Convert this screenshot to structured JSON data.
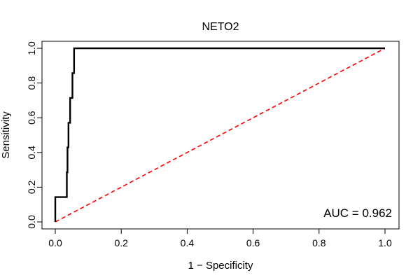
{
  "chart_data": {
    "type": "line",
    "title": "NETO2",
    "xlabel": "1 − Specificity",
    "ylabel": "Sensitivity",
    "xlim": [
      0,
      1
    ],
    "ylim": [
      0,
      1
    ],
    "x_ticks": [
      "0.0",
      "0.2",
      "0.4",
      "0.6",
      "0.8",
      "1.0"
    ],
    "y_ticks": [
      "0.0",
      "0.2",
      "0.4",
      "0.6",
      "0.8",
      "1.0"
    ],
    "grid": false,
    "legend": "none",
    "series": [
      {
        "color": "#000000",
        "style": "solid",
        "x": [
          0,
          0,
          0.035,
          0.035,
          0.037,
          0.037,
          0.04,
          0.04,
          0.045,
          0.045,
          0.052,
          0.052,
          0.057,
          0.057,
          1.0
        ],
        "y": [
          0,
          0.143,
          0.143,
          0.286,
          0.286,
          0.429,
          0.429,
          0.571,
          0.571,
          0.714,
          0.714,
          0.857,
          0.857,
          1.0,
          1.0
        ]
      },
      {
        "color": "#ff0000",
        "style": "dashed",
        "x": [
          0,
          1
        ],
        "y": [
          0,
          1
        ]
      }
    ],
    "annotations": [
      {
        "text": "AUC = 0.962"
      }
    ]
  }
}
